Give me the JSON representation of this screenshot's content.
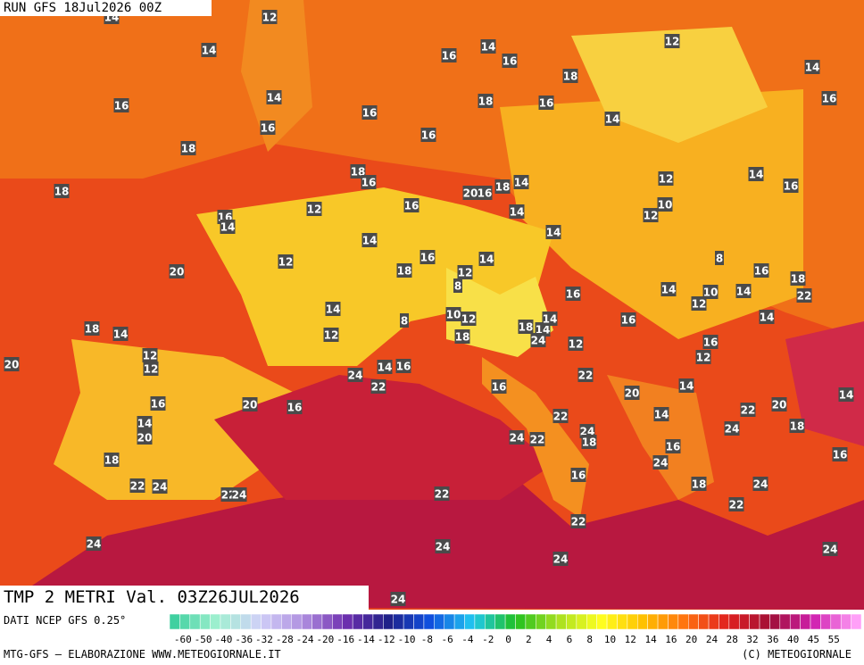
{
  "header": {
    "run": "RUN GFS 18Jul2026 00Z"
  },
  "footer": {
    "field": "TMP 2 METRI Val. 03Z26JUL2026",
    "source": "DATI NCEP GFS 0.25°",
    "credit": "MTG-GFS — ELABORAZIONE WWW.METEOGIORNALE.IT",
    "copyright": "(C) METEOGIORNALE"
  },
  "legend": {
    "ticks": [
      -60,
      -50,
      -40,
      -36,
      -32,
      -28,
      -24,
      -20,
      -16,
      -14,
      -12,
      -10,
      -8,
      -6,
      -4,
      -2,
      0,
      2,
      4,
      6,
      8,
      10,
      12,
      14,
      16,
      20,
      24,
      28,
      32,
      36,
      40,
      45,
      55
    ]
  },
  "stations": [
    12,
    14,
    14,
    14,
    16,
    16,
    12,
    14,
    18,
    16,
    18,
    16,
    14,
    14,
    16,
    16,
    16,
    16,
    18,
    18,
    16,
    14,
    18,
    16,
    20,
    12,
    14,
    16,
    18,
    12,
    16,
    14,
    12,
    10,
    16,
    14,
    14,
    14,
    12,
    18,
    16,
    14,
    12,
    8,
    16,
    18,
    22,
    20,
    16,
    14,
    10,
    12,
    14,
    8,
    14,
    10,
    12,
    8,
    18,
    14,
    12,
    18,
    18,
    14,
    14,
    24,
    16,
    14,
    16,
    12,
    12,
    20,
    12,
    12,
    24,
    14,
    16,
    22,
    22,
    20,
    14,
    16,
    20,
    16,
    20,
    22,
    14,
    14,
    22,
    16,
    14,
    20,
    24,
    22,
    24,
    18,
    24,
    18,
    16,
    16,
    18,
    24,
    16,
    22,
    24,
    22,
    24,
    22,
    18,
    24,
    22,
    22,
    24,
    24,
    24,
    24,
    24
  ]
}
